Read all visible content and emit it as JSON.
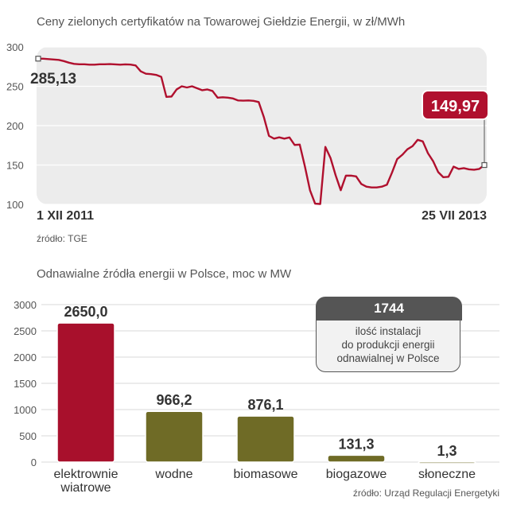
{
  "chart_data": [
    {
      "type": "line",
      "title": "Ceny zielonych certyfikatów na Towarowej Giełdzie Energii, w zł/MWh",
      "ylim": [
        100,
        300
      ],
      "yticks": [
        100,
        150,
        200,
        250,
        300
      ],
      "x_start_label": "1 XII 2011",
      "x_end_label": "25 VII 2013",
      "start_value_label": "285,13",
      "end_value_label": "149,97",
      "series": [
        {
          "values": [
            285.1,
            285,
            284.5,
            284,
            283.5,
            282,
            280,
            278.5,
            278,
            278,
            277.5,
            277.5,
            278,
            278,
            278.2,
            277.8,
            277.5,
            277.8,
            277.6,
            276.5,
            269,
            266,
            265.5,
            264.5,
            262,
            236.5,
            237,
            246,
            250,
            248.5,
            250,
            247.5,
            245,
            246,
            244,
            235.5,
            236,
            235.5,
            234.5,
            232,
            231.8,
            232,
            231.5,
            230,
            211,
            187,
            183.5,
            185.2,
            183.5,
            185,
            175.5,
            176,
            148.5,
            118,
            101,
            100.5,
            173,
            159,
            137,
            118,
            136.5,
            136.5,
            135.5,
            126,
            122.5,
            121.5,
            121.5,
            122.5,
            125,
            140.5,
            157.5,
            163,
            170,
            174,
            182,
            180,
            165,
            155,
            141,
            134.5,
            135,
            148,
            145,
            146,
            144.5,
            144,
            145,
            149.97
          ]
        }
      ],
      "source": "źródło: TGE",
      "grid": true,
      "colors": {
        "line": "#b0102e",
        "label_bg": "#b0102e",
        "plot_bg": "#ececec"
      }
    },
    {
      "type": "bar",
      "title": "Odnawialne źródła energii w Polsce, moc w MW",
      "ylim": [
        0,
        3000
      ],
      "yticks": [
        0,
        500,
        1000,
        1500,
        2000,
        2500,
        3000
      ],
      "categories": [
        [
          "elektrownie",
          "wiatrowe"
        ],
        [
          "wodne"
        ],
        [
          "biomasowe"
        ],
        [
          "biogazowe"
        ],
        [
          "słoneczne"
        ]
      ],
      "values": [
        2650.0,
        966.2,
        876.1,
        131.3,
        1.3
      ],
      "value_labels": [
        "2650,0",
        "966,2",
        "876,1",
        "131,3",
        "1,3"
      ],
      "bar_colors": [
        "#a8102c",
        "#6f6b26",
        "#6f6b26",
        "#6f6b26",
        "#6f6b26"
      ],
      "source": "źródło: Urząd Regulacji Energetyki",
      "grid": true
    }
  ],
  "callout": {
    "value": "1744",
    "lines": [
      "ilość instalacji",
      "do produkcji energii",
      "odnawialnej w Polsce"
    ]
  }
}
